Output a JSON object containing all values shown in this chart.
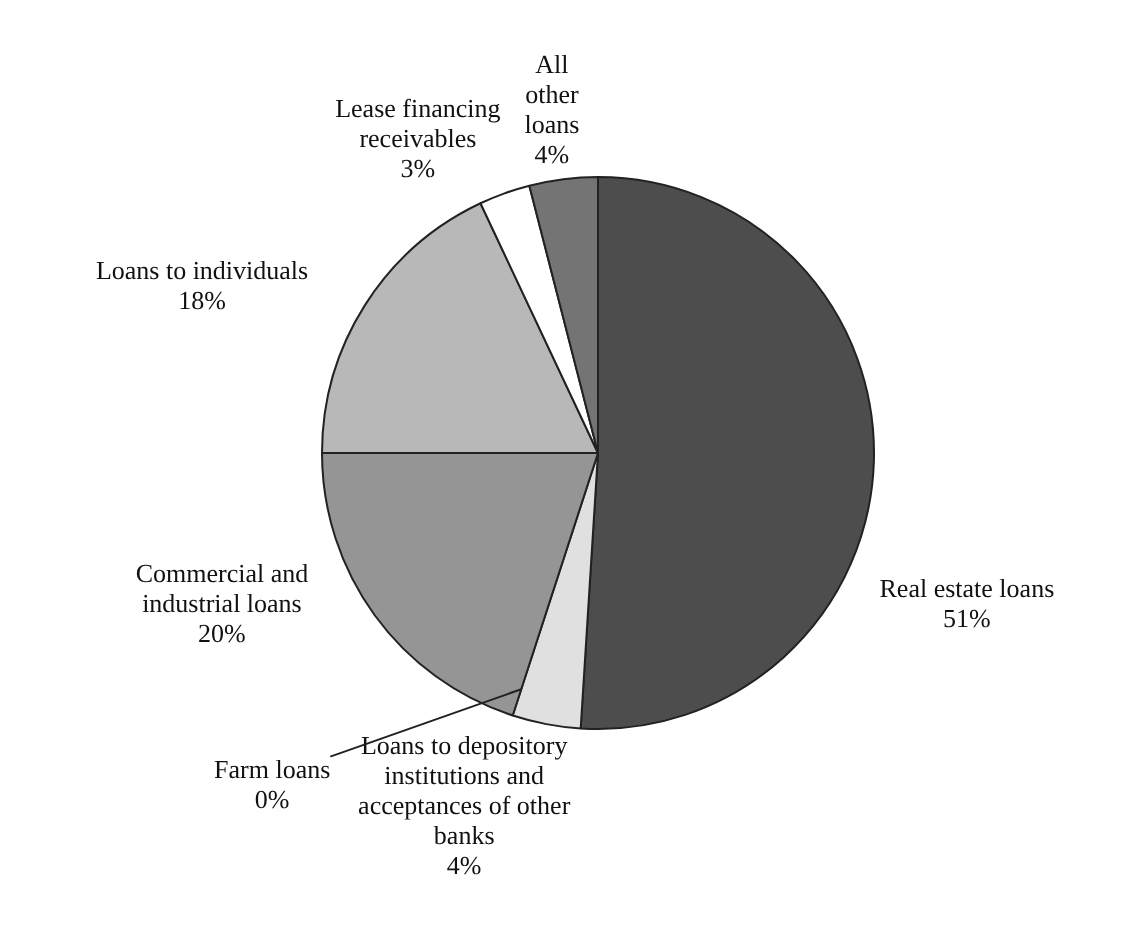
{
  "chart_data": {
    "type": "pie",
    "categories": [
      "Real estate loans",
      "Loans to depository institutions and acceptances of other banks",
      "Farm loans",
      "Commercial and industrial loans",
      "Loans to individuals",
      "Lease financing receivables",
      "All other loans"
    ],
    "values": [
      51,
      4,
      0,
      20,
      18,
      3,
      4
    ],
    "value_labels": [
      "51%",
      "4%",
      "0%",
      "20%",
      "18%",
      "3%",
      "4%"
    ],
    "colors": [
      "#4d4d4d",
      "#e0e0e0",
      "#ffffff",
      "#959595",
      "#b8b8b8",
      "#ffffff",
      "#747474"
    ],
    "legend": false
  }
}
